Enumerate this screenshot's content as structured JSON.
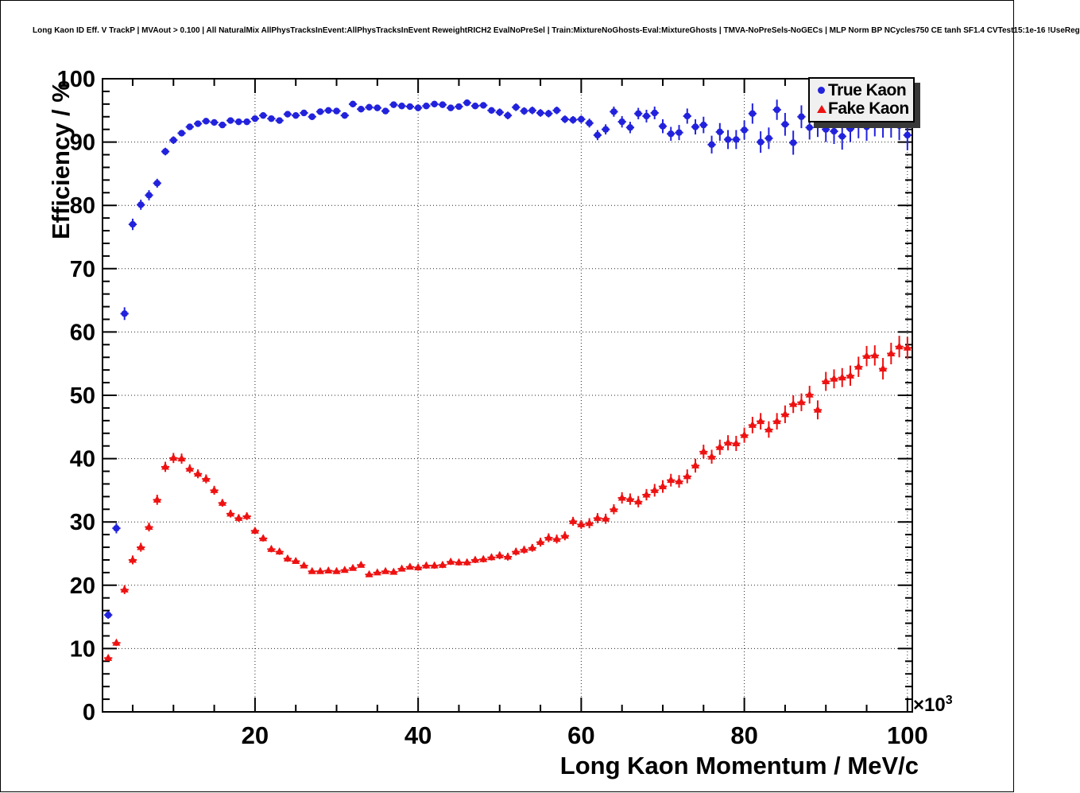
{
  "window": {
    "background": "#ffffff",
    "border_color": "#000000"
  },
  "header": {
    "title": "Long Kaon ID Eff. V TrackP | MVAout > 0.100 | All NaturalMix AllPhysTracksInEvent:AllPhysTracksInEvent ReweightRICH2 EvalNoPreSel | Train:MixtureNoGhosts-Eval:MixtureGhosts | TMVA-NoPreSels-NoGECs | MLP Norm BP NCycles750 CE tanh SF1.4 CVTest15:1e-16 !UseReg"
  },
  "axes": {
    "x_title": "Long Kaon Momentum / MeV/c",
    "y_title": "Efficiency / %",
    "x_exponent": {
      "base": "×10",
      "exp": "3"
    },
    "x_tick_labels": [
      "20",
      "40",
      "60",
      "80",
      "100"
    ],
    "y_tick_labels": [
      "0",
      "10",
      "20",
      "30",
      "40",
      "50",
      "60",
      "70",
      "80",
      "90",
      "100"
    ]
  },
  "legend": {
    "position": "top-right",
    "items": [
      {
        "label": "True Kaon",
        "marker": "circle",
        "color": "#2222dd"
      },
      {
        "label": "Fake Kaon",
        "marker": "triangle",
        "color": "#ee1111"
      }
    ]
  },
  "chart_data": {
    "type": "scatter",
    "title": "",
    "xlabel": "Long Kaon Momentum / MeV/c",
    "ylabel": "Efficiency / %",
    "x_units": "10^3 MeV/c",
    "xlim": [
      1.3,
      100.6
    ],
    "ylim": [
      0,
      100
    ],
    "grid": "dotted-on-major-ticks",
    "x_major_tick_step": 20,
    "x_minor_tick_step": 5,
    "y_major_tick_step": 10,
    "y_minor_tick_step": 2,
    "x_start": 2,
    "x_step": 1,
    "xerr": 0.5,
    "series": [
      {
        "name": "True Kaon",
        "marker": "circle",
        "color": "#2222dd",
        "y": [
          15.3,
          29.0,
          62.9,
          77.0,
          80.1,
          81.6,
          83.5,
          88.5,
          90.3,
          91.4,
          92.4,
          92.9,
          93.3,
          93.1,
          92.7,
          93.4,
          93.2,
          93.2,
          93.7,
          94.2,
          93.7,
          93.4,
          94.4,
          94.2,
          94.6,
          94.0,
          94.8,
          95.0,
          94.9,
          94.2,
          96.0,
          95.2,
          95.5,
          95.4,
          94.9,
          95.9,
          95.7,
          95.6,
          95.4,
          95.7,
          96.0,
          95.9,
          95.4,
          95.6,
          96.2,
          95.7,
          95.8,
          95.0,
          94.7,
          94.2,
          95.5,
          94.9,
          95.0,
          94.6,
          94.5,
          95.0,
          93.6,
          93.5,
          93.6,
          93.0,
          91.1,
          92.0,
          94.8,
          93.2,
          92.3,
          94.5,
          94.1,
          94.6,
          92.5,
          91.3,
          91.5,
          94.1,
          92.4,
          92.7,
          89.6,
          91.6,
          90.4,
          90.4,
          91.9,
          94.5,
          90.0,
          90.6,
          95.1,
          92.8,
          89.9,
          94.0,
          92.3,
          92.7,
          92.0,
          91.7,
          90.9,
          92.1,
          92.7,
          92.4,
          93.1,
          92.9,
          93.0,
          92.6,
          91.1
        ],
        "yerr": [
          0.6,
          0.8,
          1.0,
          0.9,
          0.8,
          0.8,
          0.7,
          0.6,
          0.6,
          0.5,
          0.5,
          0.5,
          0.5,
          0.5,
          0.5,
          0.5,
          0.5,
          0.5,
          0.5,
          0.5,
          0.5,
          0.5,
          0.5,
          0.5,
          0.5,
          0.5,
          0.5,
          0.5,
          0.5,
          0.5,
          0.5,
          0.5,
          0.5,
          0.5,
          0.5,
          0.5,
          0.5,
          0.5,
          0.5,
          0.5,
          0.5,
          0.5,
          0.5,
          0.5,
          0.5,
          0.5,
          0.5,
          0.5,
          0.6,
          0.6,
          0.6,
          0.6,
          0.6,
          0.6,
          0.6,
          0.6,
          0.6,
          0.6,
          0.6,
          0.7,
          0.8,
          0.8,
          0.8,
          0.9,
          0.9,
          0.9,
          1.0,
          1.0,
          1.1,
          1.1,
          1.2,
          1.2,
          1.2,
          1.3,
          1.4,
          1.4,
          1.5,
          1.5,
          1.5,
          1.6,
          1.7,
          1.7,
          1.6,
          1.8,
          1.9,
          1.8,
          1.9,
          1.9,
          2.0,
          2.0,
          2.1,
          2.1,
          2.1,
          2.2,
          2.2,
          2.2,
          2.3,
          2.3,
          2.4
        ]
      },
      {
        "name": "Fake Kaon",
        "marker": "triangle",
        "color": "#ee1111",
        "y": [
          8.5,
          10.9,
          19.3,
          24.0,
          26.0,
          29.2,
          33.5,
          38.7,
          40.1,
          40.0,
          38.4,
          37.6,
          36.8,
          35.0,
          33.0,
          31.3,
          30.6,
          30.9,
          28.6,
          27.4,
          25.7,
          25.3,
          24.2,
          23.8,
          23.1,
          22.2,
          22.2,
          22.3,
          22.2,
          22.4,
          22.7,
          23.2,
          21.7,
          22.0,
          22.2,
          22.1,
          22.6,
          22.9,
          22.8,
          23.1,
          23.1,
          23.2,
          23.7,
          23.6,
          23.6,
          24.0,
          24.1,
          24.4,
          24.7,
          24.5,
          25.3,
          25.6,
          25.9,
          26.8,
          27.5,
          27.3,
          27.8,
          30.1,
          29.6,
          29.8,
          30.6,
          30.5,
          32.0,
          33.8,
          33.6,
          33.2,
          34.3,
          35.0,
          35.6,
          36.6,
          36.4,
          37.2,
          38.9,
          41.1,
          40.3,
          41.8,
          42.5,
          42.4,
          43.7,
          45.3,
          45.9,
          44.6,
          45.9,
          47.0,
          48.6,
          48.9,
          50.1,
          47.7,
          52.2,
          52.6,
          52.8,
          53.1,
          54.5,
          56.2,
          56.3,
          54.2,
          56.6,
          57.7,
          57.5
        ],
        "yerr": [
          0.4,
          0.5,
          0.7,
          0.7,
          0.7,
          0.7,
          0.8,
          0.8,
          0.8,
          0.8,
          0.7,
          0.7,
          0.7,
          0.7,
          0.6,
          0.6,
          0.6,
          0.6,
          0.5,
          0.5,
          0.5,
          0.5,
          0.5,
          0.4,
          0.4,
          0.4,
          0.4,
          0.4,
          0.4,
          0.4,
          0.4,
          0.4,
          0.4,
          0.4,
          0.4,
          0.4,
          0.4,
          0.4,
          0.5,
          0.5,
          0.5,
          0.5,
          0.5,
          0.5,
          0.5,
          0.5,
          0.5,
          0.5,
          0.6,
          0.6,
          0.6,
          0.6,
          0.6,
          0.7,
          0.7,
          0.7,
          0.7,
          0.7,
          0.7,
          0.8,
          0.8,
          0.8,
          0.8,
          0.9,
          0.9,
          0.9,
          0.9,
          1.0,
          1.0,
          1.0,
          1.0,
          1.1,
          1.1,
          1.1,
          1.1,
          1.2,
          1.2,
          1.2,
          1.2,
          1.3,
          1.3,
          1.3,
          1.3,
          1.4,
          1.4,
          1.4,
          1.4,
          1.5,
          1.5,
          1.5,
          1.5,
          1.6,
          1.6,
          1.6,
          1.6,
          1.7,
          1.7,
          1.7,
          1.7
        ]
      }
    ]
  }
}
